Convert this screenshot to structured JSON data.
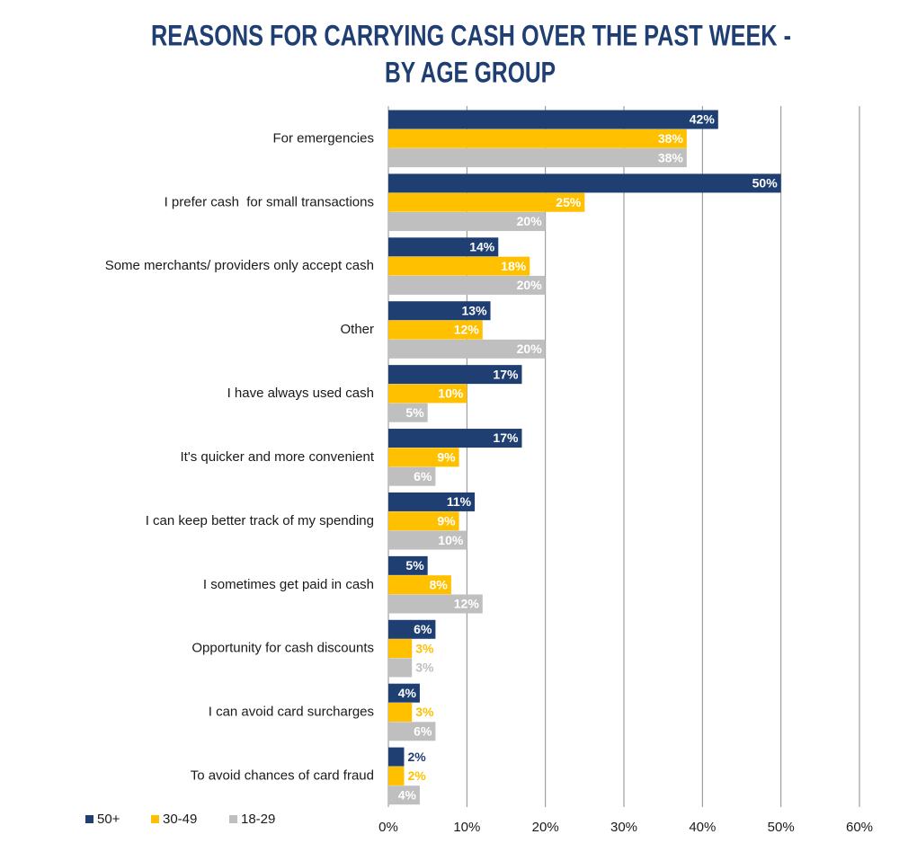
{
  "chart_data": {
    "type": "hbar",
    "title": [
      "REASONS FOR CARRYING CASH OVER THE PAST WEEK -",
      "BY AGE GROUP"
    ],
    "categories": [
      "For emergencies",
      "I prefer cash  for small transactions",
      "Some merchants/ providers only accept cash",
      "Other",
      "I have always used cash",
      "It's quicker and more convenient",
      "I can keep better track of my spending",
      "I sometimes get paid in cash",
      "Opportunity for cash discounts",
      "I can avoid card surcharges",
      "To avoid chances of card fraud"
    ],
    "series": [
      {
        "name": "50+",
        "color": "#1f3f73",
        "values": [
          42,
          50,
          14,
          13,
          17,
          17,
          11,
          5,
          6,
          4,
          2
        ],
        "value_labels": [
          "42%",
          "50%",
          "14%",
          "13%",
          "17%",
          "17%",
          "11%",
          "5%",
          "6%",
          "4%",
          "2%"
        ]
      },
      {
        "name": "30-49",
        "color": "#ffc000",
        "values": [
          38,
          25,
          18,
          12,
          10,
          9,
          9,
          8,
          3,
          3,
          2
        ],
        "value_labels": [
          "38%",
          "25%",
          "18%",
          "12%",
          "10%",
          "9%",
          "9%",
          "8%",
          "3%",
          "3%",
          "2%"
        ]
      },
      {
        "name": "18-29",
        "color": "#bfbfbf",
        "values": [
          38,
          20,
          20,
          20,
          5,
          6,
          10,
          12,
          3,
          6,
          4
        ],
        "value_labels": [
          "38%",
          "20%",
          "20%",
          "20%",
          "5%",
          "6%",
          "10%",
          "12%",
          "3%",
          "6%",
          "4%"
        ]
      }
    ],
    "xlim": [
      0,
      60
    ],
    "xticks": [
      {
        "value": 0,
        "label": "0%"
      },
      {
        "value": 10,
        "label": "10%"
      },
      {
        "value": 20,
        "label": "20%"
      },
      {
        "value": 30,
        "label": "30%"
      },
      {
        "value": 40,
        "label": "40%"
      },
      {
        "value": 50,
        "label": "50%"
      },
      {
        "value": 60,
        "label": "60%"
      }
    ],
    "grid": true,
    "legend": "bottom-left"
  }
}
